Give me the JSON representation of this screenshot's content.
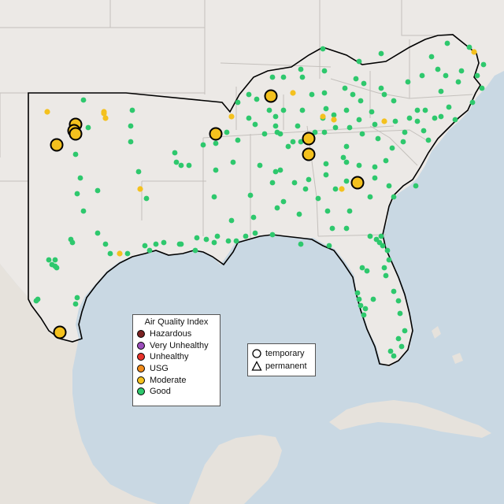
{
  "colors": {
    "ocean": "#c9d8e3",
    "land": "#ece9e6",
    "land_south": "#e6e2dc",
    "border": "#c4c0bc",
    "region_outline": "#000000",
    "good": "#2ec86d",
    "moderate": "#f4c11e",
    "usg": "#f28c1b",
    "unhealthy": "#e8332b",
    "very_unhealthy": "#9b4dbb",
    "hazardous": "#7a2222"
  },
  "aqi_legend": {
    "title": "Air Quality Index",
    "items": [
      {
        "label": "Hazardous",
        "color": "#7a2222"
      },
      {
        "label": "Very Unhealthy",
        "color": "#9b4dbb"
      },
      {
        "label": "Unhealthy",
        "color": "#e8332b"
      },
      {
        "label": "USG",
        "color": "#f28c1b"
      },
      {
        "label": "Moderate",
        "color": "#f4c11e"
      },
      {
        "label": "Good",
        "color": "#2ec86d"
      }
    ]
  },
  "shape_legend": {
    "items": [
      {
        "label": "temporary",
        "shape": "circle-icon"
      },
      {
        "label": "permanent",
        "shape": "triangle-icon"
      }
    ]
  }
}
